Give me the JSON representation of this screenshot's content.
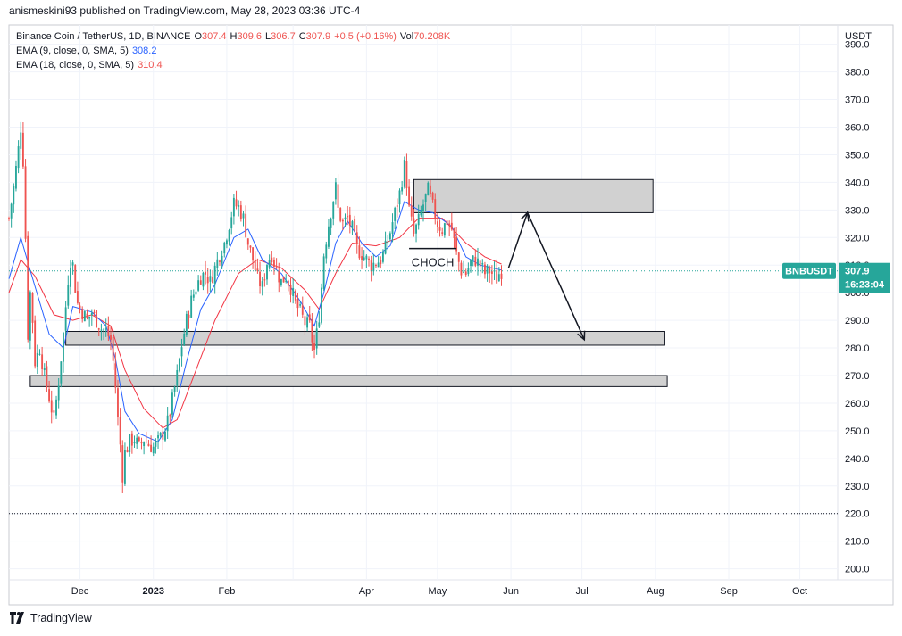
{
  "header": {
    "publish_line": "anismeskini93 published on TradingView.com, May 28, 2023 03:36 UTC-4"
  },
  "legend": {
    "symbol": "Binance Coin / TetherUS, 1D, BINANCE",
    "o_label": "O",
    "o_value": "307.4",
    "h_label": "H",
    "h_value": "309.6",
    "l_label": "L",
    "l_value": "306.7",
    "c_label": "C",
    "c_value": "307.9",
    "change": "+0.5 (+0.16%)",
    "vol_label": "Vol",
    "vol_value": "70.208K",
    "ema9_label": "EMA (9, close, 0, SMA, 5)",
    "ema9_value": "308.2",
    "ema18_label": "EMA (18, close, 0, SMA, 5)",
    "ema18_value": "310.4"
  },
  "price_tag": {
    "symbol": "BNBUSDT",
    "price": "307.9",
    "countdown": "16:23:04"
  },
  "annotation": {
    "choch": "CHOCH"
  },
  "footer": {
    "brand": "TradingView"
  },
  "colors": {
    "up": "#26a69a",
    "down": "#ef5350",
    "ema9": "#2962ff",
    "ema18": "#f23645",
    "zone_fill": "#d1d1d1",
    "price_tag": "#26a69a"
  },
  "chart_data": {
    "type": "candlestick",
    "currency": "USDT",
    "y_ticks": [
      200,
      210,
      220,
      230,
      240,
      250,
      260,
      270,
      280,
      290,
      300,
      310,
      320,
      330,
      340,
      350,
      360,
      370,
      380,
      390
    ],
    "ylim": [
      196,
      397
    ],
    "x_ticks": [
      {
        "date": "2022-12-01",
        "label": "Dec"
      },
      {
        "date": "2023-01-01",
        "label": "2023"
      },
      {
        "date": "2023-02-01",
        "label": "Feb"
      },
      {
        "date": "2023-03-01",
        "label": ""
      },
      {
        "date": "2023-04-01",
        "label": "Apr"
      },
      {
        "date": "2023-05-01",
        "label": "May"
      },
      {
        "date": "2023-06-01",
        "label": "Jun"
      },
      {
        "date": "2023-07-01",
        "label": "Jul"
      },
      {
        "date": "2023-08-01",
        "label": "Aug"
      },
      {
        "date": "2023-09-01",
        "label": "Sep"
      },
      {
        "date": "2023-10-01",
        "label": "Oct"
      }
    ],
    "xlim": [
      "2022-11-01",
      "2023-10-17"
    ],
    "close_series": [
      [
        "2022-11-01",
        327
      ],
      [
        "2022-11-03",
        338
      ],
      [
        "2022-11-05",
        352
      ],
      [
        "2022-11-06",
        360
      ],
      [
        "2022-11-07",
        348
      ],
      [
        "2022-11-08",
        320
      ],
      [
        "2022-11-09",
        285
      ],
      [
        "2022-11-10",
        300
      ],
      [
        "2022-11-11",
        290
      ],
      [
        "2022-11-12",
        275
      ],
      [
        "2022-11-14",
        280
      ],
      [
        "2022-11-16",
        270
      ],
      [
        "2022-11-18",
        262
      ],
      [
        "2022-11-20",
        254
      ],
      [
        "2022-11-22",
        268
      ],
      [
        "2022-11-24",
        285
      ],
      [
        "2022-11-26",
        305
      ],
      [
        "2022-11-27",
        312
      ],
      [
        "2022-11-28",
        310
      ],
      [
        "2022-11-29",
        302
      ],
      [
        "2022-11-30",
        296
      ],
      [
        "2022-12-02",
        293
      ],
      [
        "2022-12-04",
        290
      ],
      [
        "2022-12-06",
        293
      ],
      [
        "2022-12-08",
        290
      ],
      [
        "2022-12-10",
        287
      ],
      [
        "2022-12-12",
        286
      ],
      [
        "2022-12-14",
        283
      ],
      [
        "2022-12-15",
        275
      ],
      [
        "2022-12-16",
        266
      ],
      [
        "2022-12-17",
        254
      ],
      [
        "2022-12-18",
        245
      ],
      [
        "2022-12-19",
        234
      ],
      [
        "2022-12-20",
        242
      ],
      [
        "2022-12-22",
        246
      ],
      [
        "2022-12-24",
        247
      ],
      [
        "2022-12-26",
        244
      ],
      [
        "2022-12-28",
        247
      ],
      [
        "2022-12-30",
        245
      ],
      [
        "2023-01-01",
        244
      ],
      [
        "2023-01-03",
        246
      ],
      [
        "2023-01-05",
        249
      ],
      [
        "2023-01-07",
        253
      ],
      [
        "2023-01-09",
        261
      ],
      [
        "2023-01-11",
        270
      ],
      [
        "2023-01-13",
        281
      ],
      [
        "2023-01-15",
        290
      ],
      [
        "2023-01-17",
        297
      ],
      [
        "2023-01-19",
        302
      ],
      [
        "2023-01-21",
        306
      ],
      [
        "2023-01-23",
        307
      ],
      [
        "2023-01-25",
        304
      ],
      [
        "2023-01-27",
        309
      ],
      [
        "2023-01-29",
        314
      ],
      [
        "2023-01-31",
        318
      ],
      [
        "2023-02-02",
        325
      ],
      [
        "2023-02-04",
        332
      ],
      [
        "2023-02-06",
        331
      ],
      [
        "2023-02-08",
        327
      ],
      [
        "2023-02-10",
        318
      ],
      [
        "2023-02-12",
        312
      ],
      [
        "2023-02-14",
        305
      ],
      [
        "2023-02-16",
        302
      ],
      [
        "2023-02-18",
        311
      ],
      [
        "2023-02-20",
        314
      ],
      [
        "2023-02-22",
        308
      ],
      [
        "2023-02-24",
        304
      ],
      [
        "2023-02-26",
        306
      ],
      [
        "2023-02-28",
        302
      ],
      [
        "2023-03-02",
        296
      ],
      [
        "2023-03-04",
        293
      ],
      [
        "2023-03-06",
        289
      ],
      [
        "2023-03-08",
        288
      ],
      [
        "2023-03-09",
        283
      ],
      [
        "2023-03-10",
        279
      ],
      [
        "2023-03-11",
        285
      ],
      [
        "2023-03-12",
        292
      ],
      [
        "2023-03-13",
        302
      ],
      [
        "2023-03-14",
        314
      ],
      [
        "2023-03-16",
        325
      ],
      [
        "2023-03-18",
        334
      ],
      [
        "2023-03-19",
        338
      ],
      [
        "2023-03-20",
        330
      ],
      [
        "2023-03-22",
        325
      ],
      [
        "2023-03-24",
        327
      ],
      [
        "2023-03-26",
        323
      ],
      [
        "2023-03-28",
        316
      ],
      [
        "2023-03-30",
        314
      ],
      [
        "2023-04-01",
        312
      ],
      [
        "2023-04-03",
        310
      ],
      [
        "2023-04-05",
        311
      ],
      [
        "2023-04-07",
        312
      ],
      [
        "2023-04-09",
        316
      ],
      [
        "2023-04-11",
        322
      ],
      [
        "2023-04-13",
        329
      ],
      [
        "2023-04-15",
        336
      ],
      [
        "2023-04-17",
        346
      ],
      [
        "2023-04-18",
        340
      ],
      [
        "2023-04-19",
        330
      ],
      [
        "2023-04-21",
        321
      ],
      [
        "2023-04-23",
        326
      ],
      [
        "2023-04-25",
        332
      ],
      [
        "2023-04-27",
        337
      ],
      [
        "2023-04-29",
        331
      ],
      [
        "2023-05-01",
        325
      ],
      [
        "2023-05-03",
        323
      ],
      [
        "2023-05-05",
        326
      ],
      [
        "2023-05-07",
        323
      ],
      [
        "2023-05-09",
        314
      ],
      [
        "2023-05-11",
        308
      ],
      [
        "2023-05-13",
        307
      ],
      [
        "2023-05-15",
        311
      ],
      [
        "2023-05-17",
        312
      ],
      [
        "2023-05-19",
        310
      ],
      [
        "2023-05-21",
        307
      ],
      [
        "2023-05-23",
        308
      ],
      [
        "2023-05-25",
        306
      ],
      [
        "2023-05-26",
        305
      ],
      [
        "2023-05-27",
        307
      ],
      [
        "2023-05-28",
        307.9
      ]
    ],
    "ema9_series": [
      [
        "2022-11-01",
        305
      ],
      [
        "2022-11-06",
        320
      ],
      [
        "2022-11-10",
        308
      ],
      [
        "2022-11-18",
        285
      ],
      [
        "2022-11-24",
        280
      ],
      [
        "2022-11-28",
        295
      ],
      [
        "2022-12-06",
        293
      ],
      [
        "2022-12-12",
        288
      ],
      [
        "2022-12-16",
        276
      ],
      [
        "2022-12-20",
        257
      ],
      [
        "2022-12-26",
        249
      ],
      [
        "2023-01-03",
        246
      ],
      [
        "2023-01-09",
        254
      ],
      [
        "2023-01-15",
        275
      ],
      [
        "2023-01-21",
        294
      ],
      [
        "2023-01-27",
        303
      ],
      [
        "2023-02-04",
        320
      ],
      [
        "2023-02-10",
        323
      ],
      [
        "2023-02-16",
        312
      ],
      [
        "2023-02-24",
        307
      ],
      [
        "2023-03-04",
        297
      ],
      [
        "2023-03-10",
        288
      ],
      [
        "2023-03-14",
        300
      ],
      [
        "2023-03-19",
        318
      ],
      [
        "2023-03-24",
        326
      ],
      [
        "2023-03-30",
        318
      ],
      [
        "2023-04-05",
        313
      ],
      [
        "2023-04-11",
        317
      ],
      [
        "2023-04-17",
        333
      ],
      [
        "2023-04-23",
        330
      ],
      [
        "2023-04-29",
        329
      ],
      [
        "2023-05-07",
        324
      ],
      [
        "2023-05-13",
        313
      ],
      [
        "2023-05-19",
        310
      ],
      [
        "2023-05-28",
        308.2
      ]
    ],
    "ema18_series": [
      [
        "2022-11-01",
        300
      ],
      [
        "2022-11-06",
        312
      ],
      [
        "2022-11-12",
        306
      ],
      [
        "2022-11-20",
        292
      ],
      [
        "2022-11-28",
        290
      ],
      [
        "2022-12-06",
        292
      ],
      [
        "2022-12-14",
        288
      ],
      [
        "2022-12-20",
        272
      ],
      [
        "2022-12-28",
        258
      ],
      [
        "2023-01-05",
        251
      ],
      [
        "2023-01-11",
        254
      ],
      [
        "2023-01-19",
        272
      ],
      [
        "2023-01-27",
        290
      ],
      [
        "2023-02-06",
        307
      ],
      [
        "2023-02-14",
        312
      ],
      [
        "2023-02-24",
        309
      ],
      [
        "2023-03-06",
        301
      ],
      [
        "2023-03-12",
        294
      ],
      [
        "2023-03-19",
        307
      ],
      [
        "2023-03-26",
        318
      ],
      [
        "2023-04-05",
        317
      ],
      [
        "2023-04-15",
        320
      ],
      [
        "2023-04-23",
        327
      ],
      [
        "2023-05-03",
        327
      ],
      [
        "2023-05-13",
        318
      ],
      [
        "2023-05-21",
        313
      ],
      [
        "2023-05-28",
        310.4
      ]
    ],
    "zones": [
      {
        "name": "supply",
        "x0": "2023-04-21",
        "x1": "2023-07-31",
        "y0": 329,
        "y1": 341
      },
      {
        "name": "demand-1",
        "x0": "2022-11-25",
        "x1": "2023-08-05",
        "y0": 281,
        "y1": 286
      },
      {
        "name": "demand-2",
        "x0": "2022-11-10",
        "x1": "2023-08-06",
        "y0": 266,
        "y1": 270
      }
    ],
    "choch_line": {
      "x0": "2023-04-19",
      "x1": "2023-05-09",
      "y": 316
    },
    "projection": [
      [
        "2023-05-31",
        309
      ],
      [
        "2023-06-08",
        329
      ],
      [
        "2023-07-02",
        283
      ]
    ],
    "current_price": 307.9,
    "low_dotted": 220
  }
}
